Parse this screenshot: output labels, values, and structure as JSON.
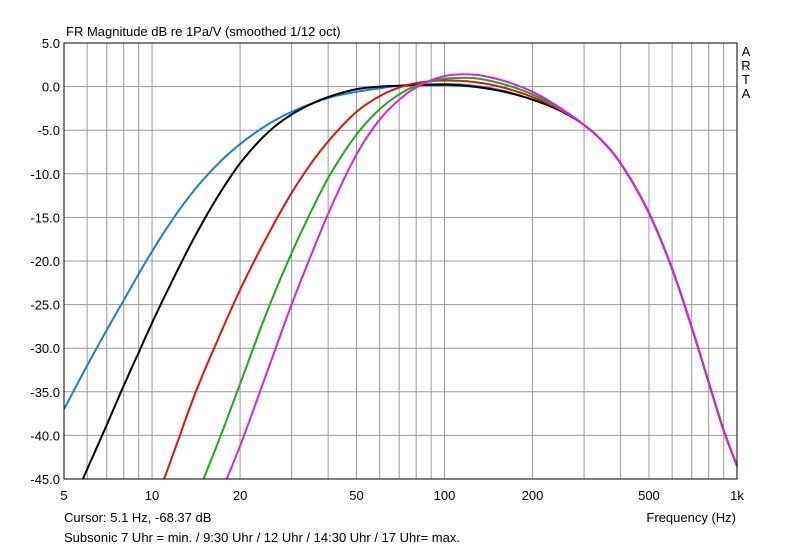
{
  "chart_data": {
    "type": "line",
    "title": "FR Magnitude dB re 1Pa/V (smoothed 1/12 oct)",
    "xlabel": "Frequency (Hz)",
    "ylabel": "",
    "x_scale": "log",
    "xlim": [
      5,
      1000
    ],
    "ylim": [
      -45,
      5
    ],
    "x_ticks": [
      5,
      10,
      20,
      50,
      100,
      200,
      500,
      1000
    ],
    "x_tick_labels": [
      "5",
      "10",
      "20",
      "50",
      "100",
      "200",
      "500",
      "1k"
    ],
    "y_ticks": [
      5,
      0,
      -5,
      -10,
      -15,
      -20,
      -25,
      -30,
      -35,
      -40,
      -45
    ],
    "y_tick_labels": [
      "5.0",
      "0.0",
      "-5.0",
      "-10.0",
      "-15.0",
      "-20.0",
      "-25.0",
      "-30.0",
      "-35.0",
      "-40.0",
      "-45.0"
    ],
    "grid": true,
    "brand": [
      "A",
      "R",
      "T",
      "A"
    ],
    "cursor": "Cursor: 5.1 Hz, -68.37 dB",
    "caption": "Subsonic 7 Uhr = min. / 9:30 Uhr / 12 Uhr / 14:30 Uhr / 17 Uhr= max.",
    "series": [
      {
        "color": "#1a7fd4",
        "x": [
          5,
          6,
          7,
          8,
          10,
          12,
          14,
          17,
          20,
          25,
          30,
          40,
          50,
          60,
          70,
          80,
          100,
          150,
          200,
          250,
          300,
          350,
          400,
          500,
          600,
          700,
          800,
          900,
          1000
        ],
        "y": [
          -37.0,
          -32.0,
          -27.9,
          -24.5,
          -18.9,
          -14.8,
          -11.8,
          -8.7,
          -6.6,
          -4.3,
          -2.9,
          -1.3,
          -0.6,
          -0.2,
          0.1,
          0.2,
          0.3,
          -0.3,
          -1.5,
          -2.8,
          -4.4,
          -6.4,
          -8.8,
          -14.5,
          -20.9,
          -27.6,
          -33.9,
          -39.4,
          -43.5
        ]
      },
      {
        "color": "#000000",
        "x": [
          5.8,
          7,
          8,
          9,
          10,
          12,
          14,
          17,
          20,
          25,
          30,
          35,
          40,
          50,
          60,
          70,
          80,
          100,
          150,
          200,
          250,
          300,
          350,
          400,
          500,
          600,
          700,
          800,
          900,
          1000
        ],
        "y": [
          -45.0,
          -38.8,
          -34.3,
          -30.5,
          -27.1,
          -21.6,
          -17.2,
          -12.3,
          -8.8,
          -5.2,
          -3.2,
          -2.0,
          -1.2,
          -0.3,
          0.0,
          0.1,
          0.2,
          0.2,
          -0.4,
          -1.5,
          -2.8,
          -4.4,
          -6.4,
          -8.8,
          -14.5,
          -20.9,
          -27.6,
          -33.9,
          -39.4,
          -43.5
        ]
      },
      {
        "color": "#e0140c",
        "x": [
          11.0,
          12,
          14,
          17,
          20,
          25,
          30,
          35,
          40,
          50,
          60,
          70,
          80,
          100,
          120,
          150,
          200,
          250,
          300,
          350,
          400,
          500,
          600,
          700,
          800,
          900,
          1000
        ],
        "y": [
          -45.0,
          -41.5,
          -35.3,
          -28.6,
          -23.3,
          -16.9,
          -12.2,
          -8.8,
          -6.3,
          -2.9,
          -1.1,
          -0.1,
          0.4,
          0.7,
          0.6,
          0.1,
          -1.2,
          -2.7,
          -4.4,
          -6.4,
          -8.8,
          -14.5,
          -20.9,
          -27.6,
          -33.9,
          -39.4,
          -43.5
        ]
      },
      {
        "color": "#1fa81f",
        "x": [
          15.0,
          17,
          20,
          25,
          30,
          35,
          40,
          50,
          60,
          70,
          80,
          100,
          120,
          150,
          200,
          250,
          300,
          350,
          400,
          500,
          600,
          700,
          800,
          900,
          1000
        ],
        "y": [
          -45.0,
          -40.4,
          -34.1,
          -25.4,
          -19.1,
          -14.3,
          -10.5,
          -5.5,
          -2.6,
          -0.9,
          0.1,
          0.9,
          1.0,
          0.5,
          -0.9,
          -2.6,
          -4.4,
          -6.4,
          -8.8,
          -14.5,
          -20.9,
          -27.6,
          -33.9,
          -39.4,
          -43.5
        ]
      },
      {
        "color": "#dd20dd",
        "x": [
          18.0,
          20,
          25,
          30,
          35,
          40,
          50,
          60,
          70,
          80,
          100,
          120,
          150,
          200,
          250,
          300,
          350,
          400,
          500,
          600,
          700,
          800,
          900,
          1000
        ],
        "y": [
          -45.0,
          -41.2,
          -32.3,
          -25.0,
          -19.3,
          -14.6,
          -7.8,
          -3.8,
          -1.5,
          -0.1,
          1.2,
          1.4,
          0.9,
          -0.6,
          -2.5,
          -4.4,
          -6.4,
          -8.8,
          -14.5,
          -20.9,
          -27.6,
          -33.9,
          -39.4,
          -43.5
        ]
      }
    ]
  }
}
